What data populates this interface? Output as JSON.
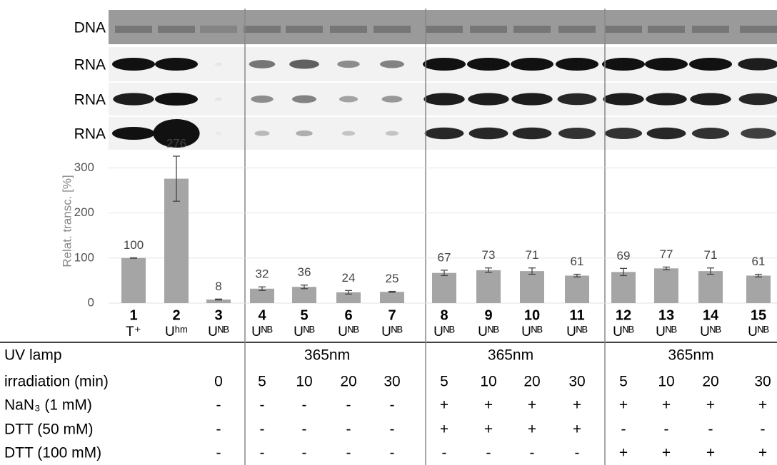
{
  "gel": {
    "rows": [
      "DNA",
      "RNA",
      "RNA",
      "RNA"
    ]
  },
  "chart_data": {
    "type": "bar",
    "y_label": "Relat. transc. [%]",
    "categories": [
      "1",
      "2",
      "3",
      "4",
      "5",
      "6",
      "7",
      "8",
      "9",
      "10",
      "11",
      "12",
      "13",
      "14",
      "15"
    ],
    "sublabels": [
      "T⁺",
      "Uʰᵐ",
      "Uᴺᴮ",
      "Uᴺᴮ",
      "Uᴺᴮ",
      "Uᴺᴮ",
      "Uᴺᴮ",
      "Uᴺᴮ",
      "Uᴺᴮ",
      "Uᴺᴮ",
      "Uᴺᴮ",
      "Uᴺᴮ",
      "Uᴺᴮ",
      "Uᴺᴮ",
      "Uᴺᴮ"
    ],
    "values": [
      100,
      276,
      8,
      32,
      36,
      24,
      25,
      67,
      73,
      71,
      61,
      69,
      77,
      71,
      61
    ],
    "errors": [
      0.5,
      50,
      1,
      4,
      4,
      4,
      1,
      6,
      5,
      7,
      3,
      8,
      3,
      7,
      3
    ],
    "color": "#a5a5a5",
    "ylim": [
      0,
      330
    ],
    "yticks": [
      0,
      100,
      200,
      300
    ],
    "grid": true
  },
  "table": {
    "uv_lamp": {
      "label": "UV lamp",
      "groups": [
        "365nm",
        "365nm",
        "365nm"
      ]
    },
    "rows": [
      {
        "label": "irradiation (min)",
        "cells": [
          null,
          null,
          "0",
          "5",
          "10",
          "20",
          "30",
          "5",
          "10",
          "20",
          "30",
          "5",
          "10",
          "20",
          "30"
        ]
      },
      {
        "label": "NaN₃ (1 mM)",
        "cells": [
          null,
          null,
          "-",
          "-",
          "-",
          "-",
          "-",
          "+",
          "+",
          "+",
          "+",
          "+",
          "+",
          "+",
          "+"
        ]
      },
      {
        "label": "DTT (50 mM)",
        "cells": [
          null,
          null,
          "-",
          "-",
          "-",
          "-",
          "-",
          "+",
          "+",
          "+",
          "+",
          "-",
          "-",
          "-",
          "-"
        ]
      },
      {
        "label": "DTT (100 mM)",
        "cells": [
          null,
          null,
          "-",
          "-",
          "-",
          "-",
          "-",
          "-",
          "-",
          "-",
          "-",
          "+",
          "+",
          "+",
          "+"
        ]
      }
    ]
  }
}
